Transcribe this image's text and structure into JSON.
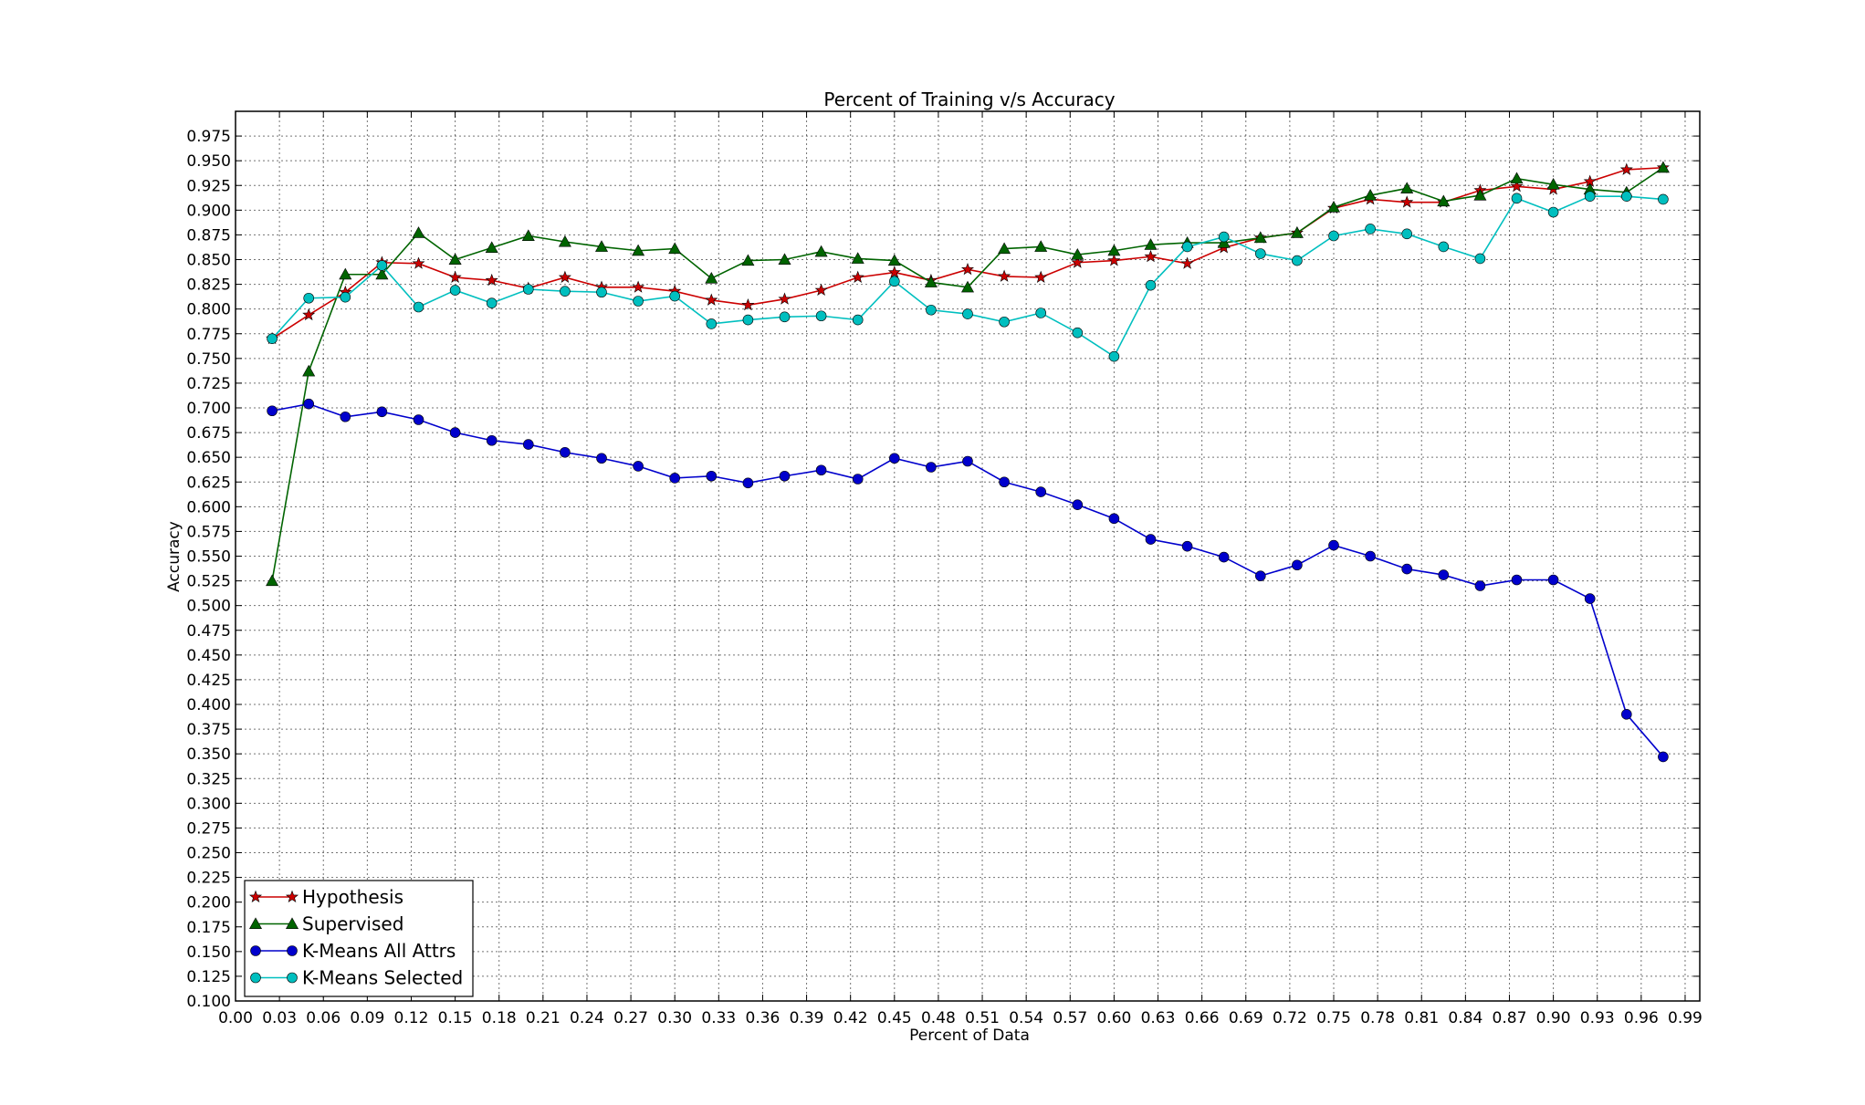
{
  "chart_data": {
    "type": "line",
    "title": "Percent of Training v/s Accuracy",
    "xlabel": "Percent of Data",
    "ylabel": "Accuracy",
    "xlim": [
      0.0,
      1.0
    ],
    "ylim": [
      0.1,
      1.0
    ],
    "grid": true,
    "legend_position": "bottom-left",
    "x_ticks": [
      "0.00",
      "0.03",
      "0.06",
      "0.09",
      "0.12",
      "0.15",
      "0.18",
      "0.21",
      "0.24",
      "0.27",
      "0.30",
      "0.33",
      "0.36",
      "0.39",
      "0.42",
      "0.45",
      "0.48",
      "0.51",
      "0.54",
      "0.57",
      "0.60",
      "0.63",
      "0.66",
      "0.69",
      "0.72",
      "0.75",
      "0.78",
      "0.81",
      "0.84",
      "0.87",
      "0.90",
      "0.93",
      "0.96",
      "0.99"
    ],
    "y_ticks": [
      "0.100",
      "0.125",
      "0.150",
      "0.175",
      "0.200",
      "0.225",
      "0.250",
      "0.275",
      "0.300",
      "0.325",
      "0.350",
      "0.375",
      "0.400",
      "0.425",
      "0.450",
      "0.475",
      "0.500",
      "0.525",
      "0.550",
      "0.575",
      "0.600",
      "0.625",
      "0.650",
      "0.675",
      "0.700",
      "0.725",
      "0.750",
      "0.775",
      "0.800",
      "0.825",
      "0.850",
      "0.875",
      "0.900",
      "0.925",
      "0.950",
      "0.975"
    ],
    "x": [
      0.025,
      0.05,
      0.075,
      0.1,
      0.125,
      0.15,
      0.175,
      0.2,
      0.225,
      0.25,
      0.275,
      0.3,
      0.325,
      0.35,
      0.375,
      0.4,
      0.425,
      0.45,
      0.475,
      0.5,
      0.525,
      0.55,
      0.575,
      0.6,
      0.625,
      0.65,
      0.675,
      0.7,
      0.725,
      0.75,
      0.775,
      0.8,
      0.825,
      0.85,
      0.875,
      0.9,
      0.925,
      0.95,
      0.975
    ],
    "series": [
      {
        "name": "Hypothesis",
        "color": "#cc0000",
        "marker": "star",
        "values": [
          0.77,
          0.794,
          0.817,
          0.847,
          0.846,
          0.832,
          0.829,
          0.821,
          0.832,
          0.822,
          0.822,
          0.818,
          0.809,
          0.804,
          0.81,
          0.819,
          0.832,
          0.837,
          0.829,
          0.84,
          0.833,
          0.832,
          0.847,
          0.849,
          0.853,
          0.846,
          0.862,
          0.872,
          0.877,
          0.902,
          0.911,
          0.908,
          0.908,
          0.92,
          0.924,
          0.921,
          0.929,
          0.941,
          0.943
        ]
      },
      {
        "name": "Supervised",
        "color": "#006400",
        "marker": "triangle",
        "values": [
          0.525,
          0.737,
          0.835,
          0.835,
          0.877,
          0.85,
          0.862,
          0.874,
          0.868,
          0.863,
          0.859,
          0.861,
          0.831,
          0.849,
          0.85,
          0.858,
          0.851,
          0.849,
          0.827,
          0.822,
          0.861,
          0.863,
          0.855,
          0.859,
          0.865,
          0.867,
          0.867,
          0.872,
          0.877,
          0.903,
          0.915,
          0.922,
          0.909,
          0.915,
          0.932,
          0.926,
          0.921,
          0.918,
          0.943
        ]
      },
      {
        "name": "K-Means All Attrs",
        "color": "#0000cc",
        "marker": "circle",
        "values": [
          0.697,
          0.704,
          0.691,
          0.696,
          0.688,
          0.675,
          0.667,
          0.663,
          0.655,
          0.649,
          0.641,
          0.629,
          0.631,
          0.624,
          0.631,
          0.637,
          0.628,
          0.649,
          0.64,
          0.646,
          0.625,
          0.615,
          0.602,
          0.588,
          0.567,
          0.56,
          0.549,
          0.53,
          0.541,
          0.561,
          0.55,
          0.537,
          0.531,
          0.52,
          0.526,
          0.526,
          0.507,
          0.39,
          0.347
        ]
      },
      {
        "name": "K-Means Selected",
        "color": "#00bfbf",
        "marker": "circle",
        "values": [
          0.77,
          0.811,
          0.812,
          0.844,
          0.802,
          0.819,
          0.806,
          0.82,
          0.818,
          0.817,
          0.808,
          0.813,
          0.785,
          0.789,
          0.792,
          0.793,
          0.789,
          0.828,
          0.799,
          0.795,
          0.787,
          0.796,
          0.776,
          0.752,
          0.824,
          0.863,
          0.873,
          0.856,
          0.849,
          0.874,
          0.881,
          0.876,
          0.863,
          0.851,
          0.912,
          0.898,
          0.914,
          0.914,
          0.911
        ]
      }
    ]
  }
}
